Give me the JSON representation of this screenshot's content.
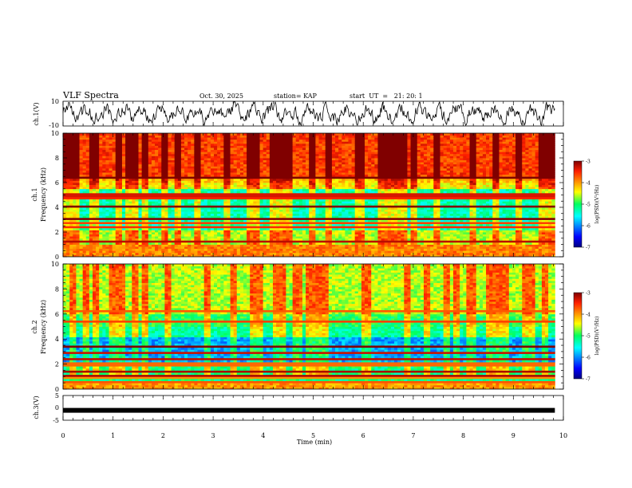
{
  "header": {
    "title": "VLF Spectra",
    "date": "Oct. 30, 2025",
    "station": "station= KAP",
    "start": "start  UT  =   21: 20: 1"
  },
  "chart_data": [
    {
      "name": "ch1-waveform",
      "type": "line",
      "ylabel": "ch.1(V)",
      "ylim": [
        -10,
        10
      ],
      "yticks": [
        "10",
        "-10"
      ],
      "xlim": [
        0,
        10
      ],
      "data_extent_min": 9.83
    },
    {
      "name": "ch1-spectrogram",
      "type": "heatmap",
      "ylabel_line1": "ch.1",
      "ylabel_line2": "Frequency (kHz)",
      "ylim": [
        0,
        10
      ],
      "yticks": [
        "0",
        "2",
        "4",
        "6",
        "8",
        "10"
      ],
      "xlim": [
        0,
        10
      ],
      "colorbar": {
        "label": "log(PSD)(V²/Hz)",
        "range": [
          -7,
          -3
        ],
        "ticks": [
          "-3",
          "-4",
          "-5",
          "-6",
          "-7"
        ]
      }
    },
    {
      "name": "ch2-spectrogram",
      "type": "heatmap",
      "ylabel_line1": "ch.2",
      "ylabel_line2": "Frequency (kHz)",
      "ylim": [
        0,
        10
      ],
      "yticks": [
        "0",
        "2",
        "4",
        "6",
        "8",
        "10"
      ],
      "xlim": [
        0,
        10
      ],
      "colorbar": {
        "label": "log(PSD)(V²/Hz)",
        "range": [
          -7,
          -3
        ],
        "ticks": [
          "-3",
          "-4",
          "-5",
          "-6",
          "-7"
        ]
      }
    },
    {
      "name": "ch3-signal",
      "type": "line",
      "ylabel": "ch.3(V)",
      "ylim": [
        -5,
        5
      ],
      "yticks": [
        "5",
        "0",
        "-5"
      ],
      "xlim": [
        0,
        10
      ],
      "level_value": -1,
      "xlabel": "Time (min)",
      "xticks": [
        "0",
        "1",
        "2",
        "3",
        "4",
        "5",
        "6",
        "7",
        "8",
        "9",
        "10"
      ]
    }
  ],
  "colors": {
    "axis": "#000000",
    "ch1_trace": "#000000",
    "ch3_trace": "#000000"
  }
}
